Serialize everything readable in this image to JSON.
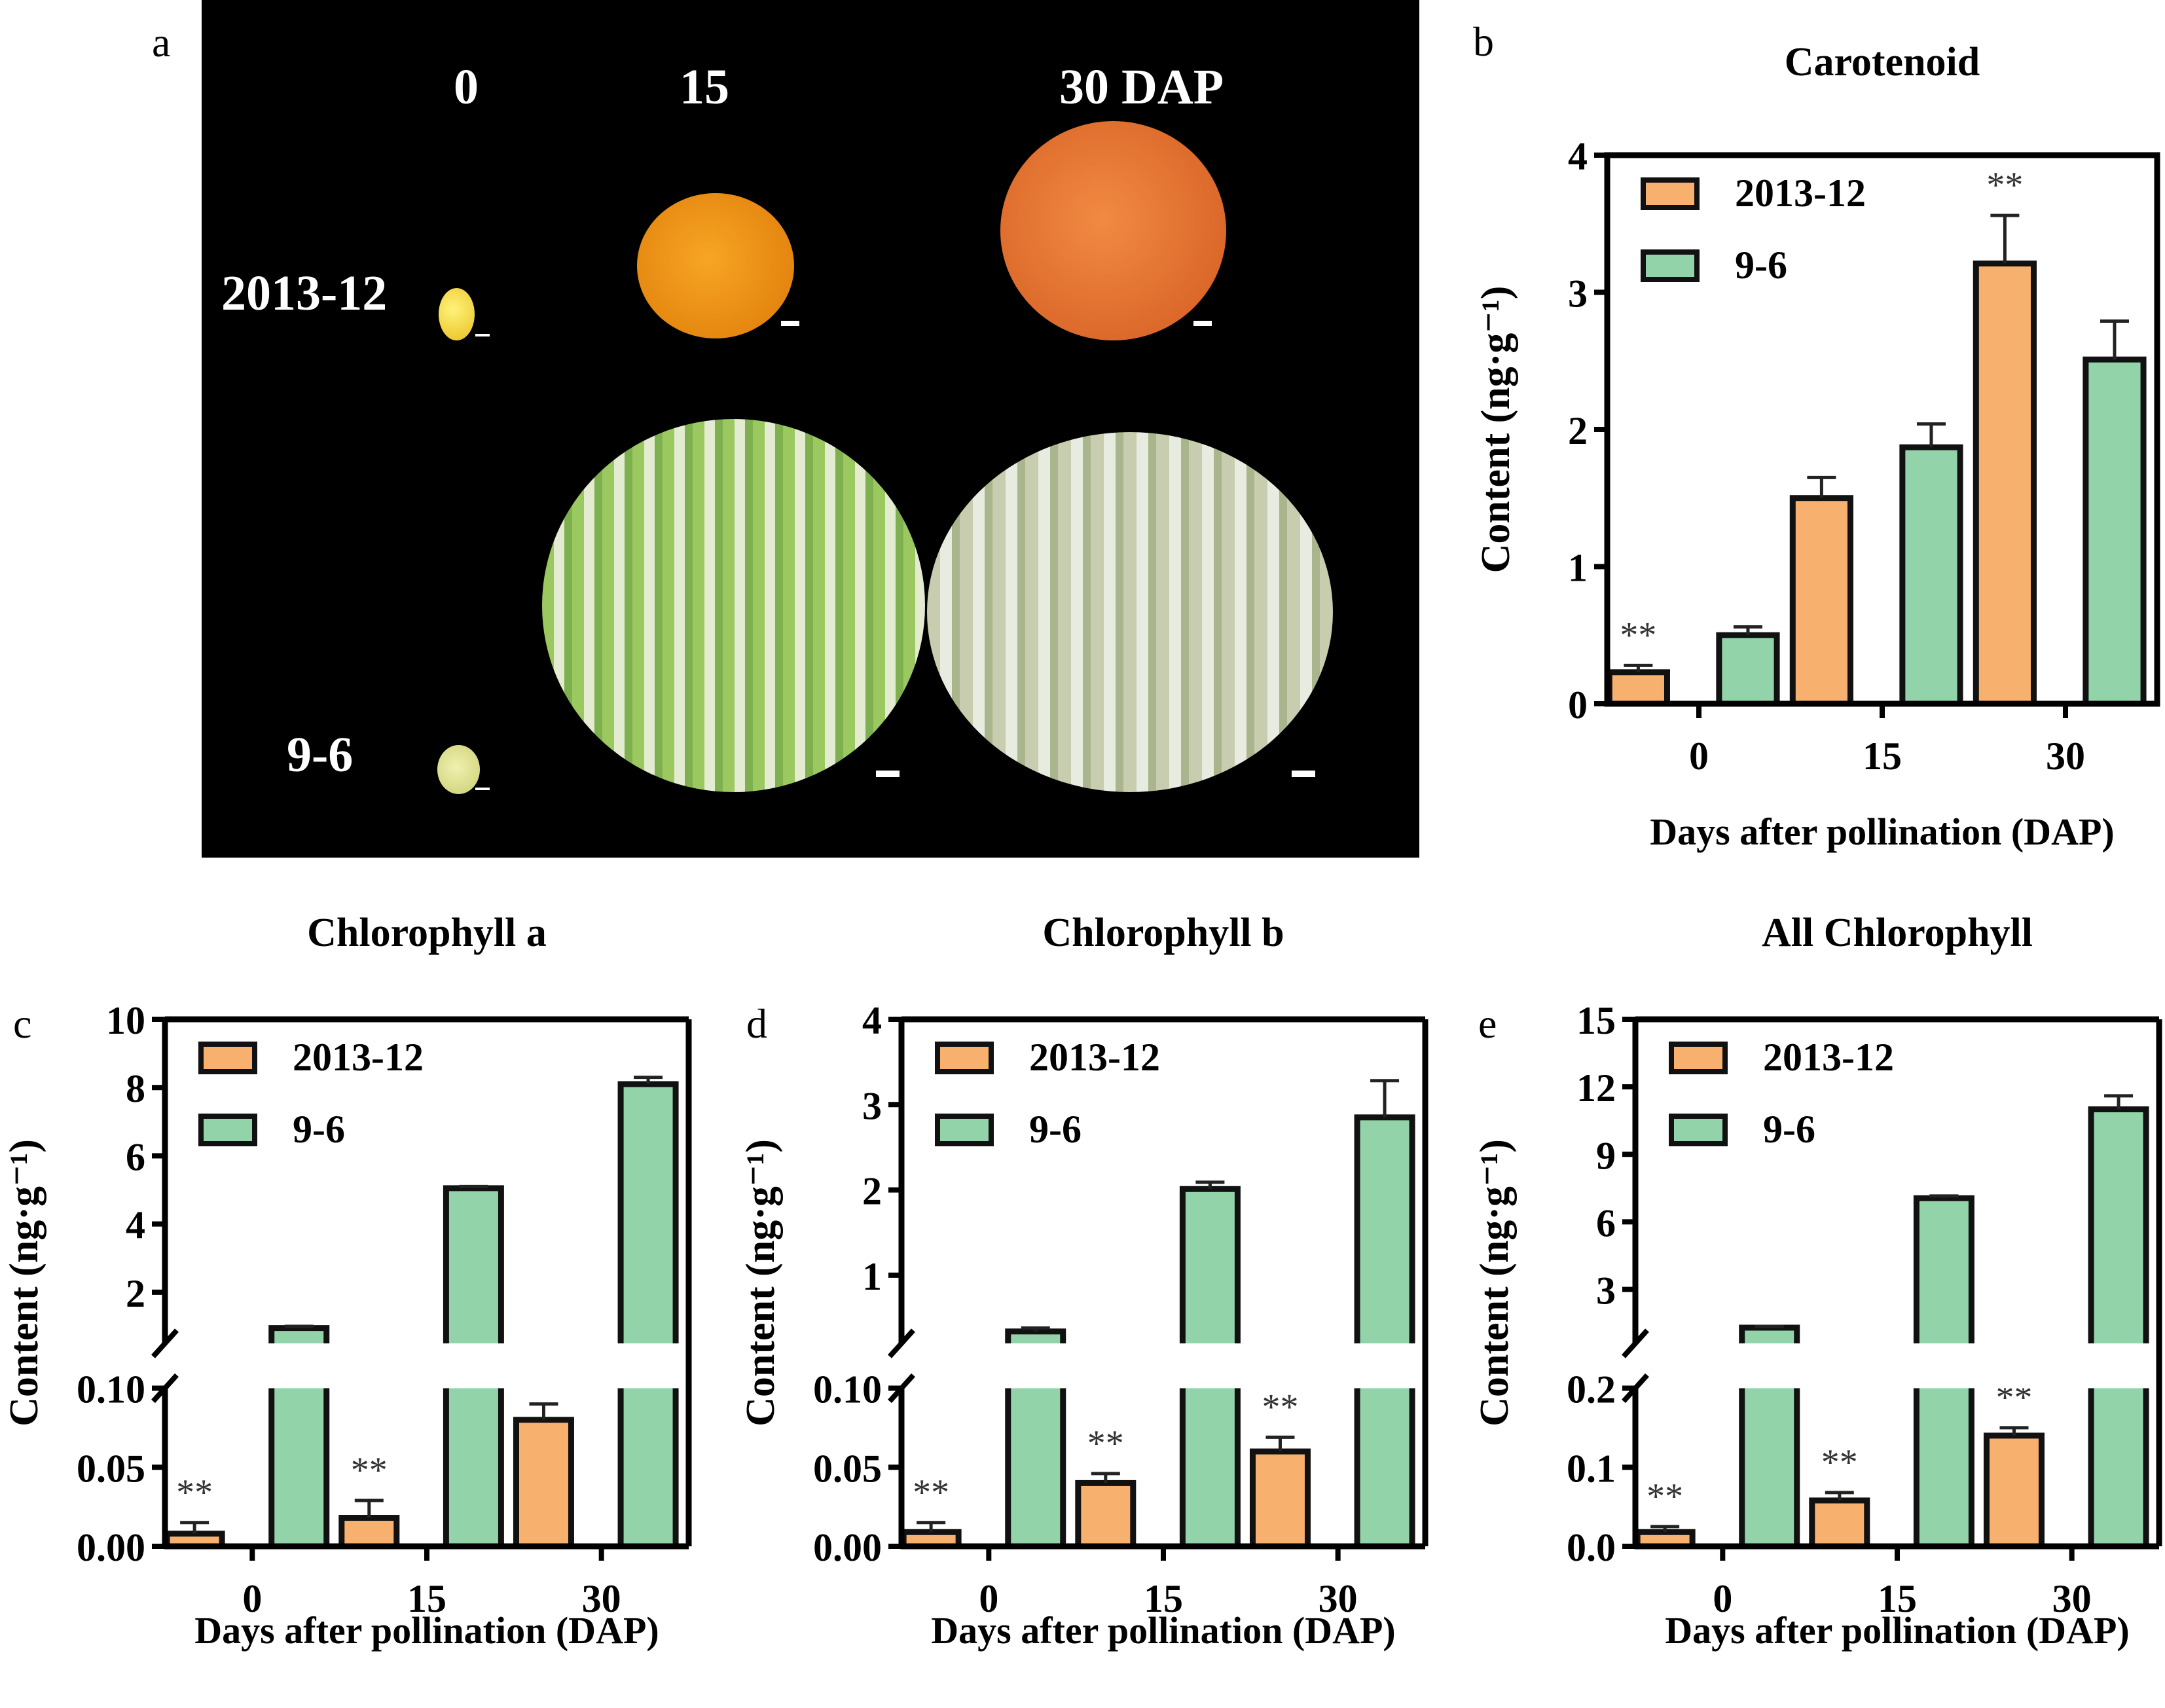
{
  "panel_a": {
    "letter": "a",
    "col_labels": [
      "0",
      "15",
      "30 DAP"
    ],
    "row_labels": [
      "2013-12",
      "9-6"
    ]
  },
  "chart_data": [
    {
      "id": "b",
      "letter": "b",
      "type": "bar",
      "title": "Carotenoid",
      "xlabel": "Days after pollination (DAP)",
      "ylabel": "Content (ng·g⁻¹)",
      "categories": [
        "0",
        "15",
        "30"
      ],
      "broken_axis": false,
      "ylim": [
        0,
        4
      ],
      "yticks": [
        0,
        1,
        2,
        3,
        4
      ],
      "ytick_labels": [
        "0",
        "1",
        "2",
        "3",
        "4"
      ],
      "legend": "top-left",
      "series": [
        {
          "name": "2013-12",
          "color": "#F7B06E",
          "values": [
            0.23,
            1.5,
            3.21
          ],
          "errors": [
            0.05,
            0.15,
            0.35
          ],
          "sig": [
            "**",
            "",
            "**"
          ]
        },
        {
          "name": "9-6",
          "color": "#93D3AA",
          "values": [
            0.5,
            1.87,
            2.51
          ],
          "errors": [
            0.06,
            0.17,
            0.28
          ],
          "sig": [
            "",
            "",
            ""
          ]
        }
      ]
    },
    {
      "id": "c",
      "letter": "c",
      "type": "bar",
      "title": "Chlorophyll a",
      "xlabel": "Days after pollination (DAP)",
      "ylabel": "Content (ng·g⁻¹)",
      "categories": [
        "0",
        "15",
        "30"
      ],
      "broken_axis": true,
      "lower_ylim": [
        0,
        0.1
      ],
      "lower_yticks": [
        0,
        0.05,
        0.1
      ],
      "lower_ytick_labels": [
        "0.00",
        "0.05",
        "0.10"
      ],
      "upper_ylim": [
        0.5,
        10
      ],
      "upper_yticks": [
        2,
        4,
        6,
        8,
        10
      ],
      "upper_ytick_labels": [
        "2",
        "4",
        "6",
        "8",
        "10"
      ],
      "legend": "top-left",
      "series": [
        {
          "name": "2013-12",
          "color": "#F7B06E",
          "values": [
            0.008,
            0.018,
            0.08
          ],
          "errors": [
            0.007,
            0.011,
            0.01
          ],
          "sig": [
            "**",
            "**",
            "**"
          ]
        },
        {
          "name": "9-6",
          "color": "#93D3AA",
          "values": [
            0.95,
            5.05,
            8.1
          ],
          "errors": [
            0.05,
            0.05,
            0.2
          ],
          "sig": [
            "",
            "",
            ""
          ]
        }
      ]
    },
    {
      "id": "d",
      "letter": "d",
      "type": "bar",
      "title": "Chlorophyll b",
      "xlabel": "Days after pollination (DAP)",
      "ylabel": "Content (ng·g⁻¹)",
      "categories": [
        "0",
        "15",
        "30"
      ],
      "broken_axis": true,
      "lower_ylim": [
        0,
        0.1
      ],
      "lower_yticks": [
        0,
        0.05,
        0.1
      ],
      "lower_ytick_labels": [
        "0.00",
        "0.05",
        "0.10"
      ],
      "upper_ylim": [
        0.2,
        4
      ],
      "upper_yticks": [
        1,
        2,
        3,
        4
      ],
      "upper_ytick_labels": [
        "1",
        "2",
        "3",
        "4"
      ],
      "legend": "top-left",
      "series": [
        {
          "name": "2013-12",
          "color": "#F7B06E",
          "values": [
            0.009,
            0.04,
            0.06
          ],
          "errors": [
            0.006,
            0.006,
            0.009
          ],
          "sig": [
            "**",
            "**",
            "**"
          ]
        },
        {
          "name": "9-6",
          "color": "#93D3AA",
          "values": [
            0.34,
            2.01,
            2.85
          ],
          "errors": [
            0.04,
            0.08,
            0.43
          ],
          "sig": [
            "",
            "",
            ""
          ]
        }
      ]
    },
    {
      "id": "e",
      "letter": "e",
      "type": "bar",
      "title": "All Chlorophyll",
      "xlabel": "Days after pollination (DAP)",
      "ylabel": "Content (ng·g⁻¹)",
      "categories": [
        "0",
        "15",
        "30"
      ],
      "broken_axis": true,
      "lower_ylim": [
        0,
        0.2
      ],
      "lower_yticks": [
        0,
        0.1,
        0.2
      ],
      "lower_ytick_labels": [
        "0.0",
        "0.1",
        "0.2"
      ],
      "upper_ylim": [
        0.6,
        15
      ],
      "upper_yticks": [
        3,
        6,
        9,
        12,
        15
      ],
      "upper_ytick_labels": [
        "3",
        "6",
        "9",
        "12",
        "15"
      ],
      "legend": "top-left",
      "series": [
        {
          "name": "2013-12",
          "color": "#F7B06E",
          "values": [
            0.018,
            0.058,
            0.14
          ],
          "errors": [
            0.007,
            0.01,
            0.01
          ],
          "sig": [
            "**",
            "**",
            "**"
          ]
        },
        {
          "name": "9-6",
          "color": "#93D3AA",
          "values": [
            1.3,
            7.05,
            11.0
          ],
          "errors": [
            0.05,
            0.1,
            0.6
          ],
          "sig": [
            "",
            "",
            ""
          ]
        }
      ]
    }
  ]
}
